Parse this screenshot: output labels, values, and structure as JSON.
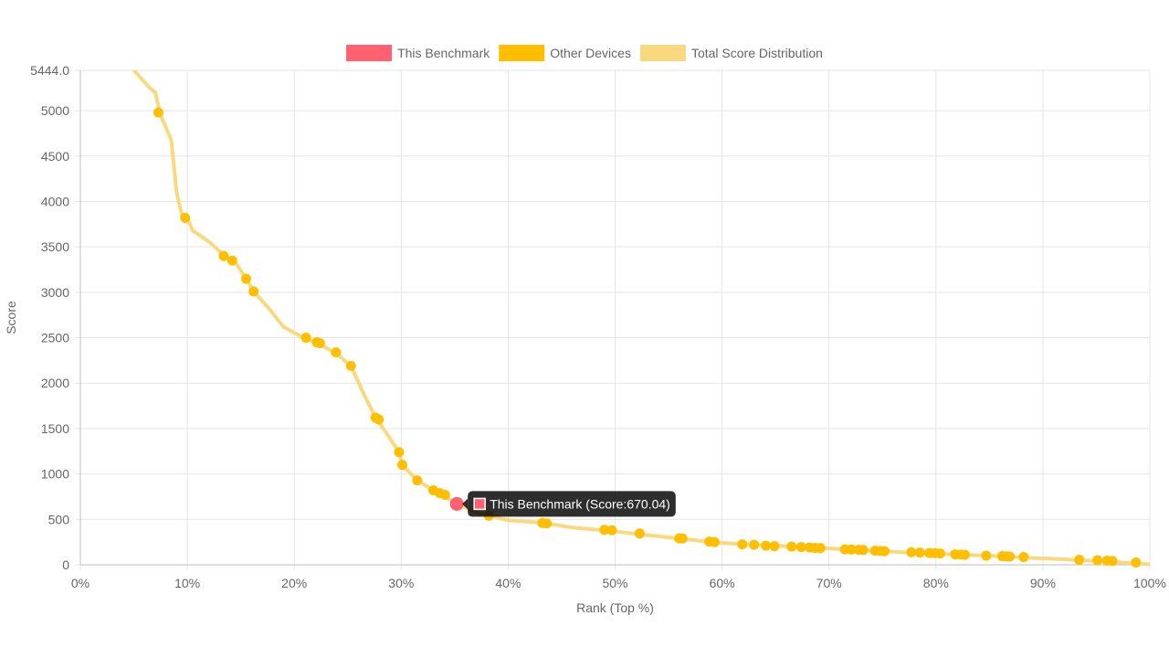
{
  "chart_data": {
    "type": "scatter",
    "xlabel": "Rank (Top %)",
    "ylabel": "Score",
    "xlim": [
      0,
      100
    ],
    "ylim": [
      0,
      5444.0
    ],
    "x_ticks": [
      "0%",
      "10%",
      "20%",
      "30%",
      "40%",
      "50%",
      "60%",
      "70%",
      "80%",
      "90%",
      "100%"
    ],
    "y_ticks": [
      "0",
      "500",
      "1000",
      "1500",
      "2000",
      "2500",
      "3000",
      "3500",
      "4000",
      "4500",
      "5000",
      "5444.0"
    ],
    "grid": true,
    "legend_position": "top",
    "legend": [
      {
        "label": "This Benchmark",
        "color": "#ff6170"
      },
      {
        "label": "Other Devices",
        "color": "#ffbf00"
      },
      {
        "label": "Total Score Distribution",
        "color": "#fad97e"
      }
    ],
    "series": [
      {
        "name": "Total Score Distribution",
        "kind": "line",
        "color": "#fad97e",
        "points": [
          [
            5,
            5444
          ],
          [
            5.5,
            5380
          ],
          [
            6.5,
            5250
          ],
          [
            7,
            5200
          ],
          [
            7.5,
            4950
          ],
          [
            8.5,
            4680
          ],
          [
            9,
            4100
          ],
          [
            9.5,
            3850
          ],
          [
            10,
            3820
          ],
          [
            10.5,
            3680
          ],
          [
            12,
            3560
          ],
          [
            13.5,
            3400
          ],
          [
            14.5,
            3330
          ],
          [
            15.5,
            3150
          ],
          [
            16.2,
            3010
          ],
          [
            17.5,
            2840
          ],
          [
            19,
            2620
          ],
          [
            21,
            2490
          ],
          [
            22.2,
            2440
          ],
          [
            23.9,
            2330
          ],
          [
            25.3,
            2190
          ],
          [
            26.5,
            1880
          ],
          [
            27.6,
            1620
          ],
          [
            28.5,
            1470
          ],
          [
            29.8,
            1240
          ],
          [
            30.1,
            1100
          ],
          [
            31.5,
            930
          ],
          [
            33,
            820
          ],
          [
            34,
            760
          ],
          [
            35.2,
            670
          ],
          [
            37,
            580
          ],
          [
            38.2,
            540
          ],
          [
            40,
            490
          ],
          [
            43.5,
            460
          ],
          [
            46,
            410
          ],
          [
            49,
            380
          ],
          [
            52,
            340
          ],
          [
            56,
            290
          ],
          [
            59,
            250
          ],
          [
            62,
            225
          ],
          [
            65,
            210
          ],
          [
            70,
            180
          ],
          [
            75,
            150
          ],
          [
            80,
            120
          ],
          [
            85,
            100
          ],
          [
            88,
            80
          ],
          [
            92,
            60
          ],
          [
            96,
            35
          ],
          [
            100,
            5
          ]
        ]
      },
      {
        "name": "Other Devices",
        "kind": "scatter",
        "color": "#ffbf00",
        "points": [
          [
            7.3,
            4980
          ],
          [
            9.8,
            3820
          ],
          [
            13.4,
            3400
          ],
          [
            14.2,
            3350
          ],
          [
            15.5,
            3150
          ],
          [
            16.2,
            3010
          ],
          [
            21.1,
            2500
          ],
          [
            22.1,
            2450
          ],
          [
            22.4,
            2440
          ],
          [
            23.9,
            2340
          ],
          [
            25.3,
            2190
          ],
          [
            27.6,
            1620
          ],
          [
            27.9,
            1600
          ],
          [
            29.8,
            1240
          ],
          [
            30.1,
            1100
          ],
          [
            31.5,
            930
          ],
          [
            33.0,
            820
          ],
          [
            33.6,
            790
          ],
          [
            34.1,
            770
          ],
          [
            38.2,
            540
          ],
          [
            43.2,
            460
          ],
          [
            43.6,
            455
          ],
          [
            49.0,
            385
          ],
          [
            49.7,
            380
          ],
          [
            52.3,
            345
          ],
          [
            56.0,
            290
          ],
          [
            56.3,
            290
          ],
          [
            58.8,
            255
          ],
          [
            59.3,
            250
          ],
          [
            61.9,
            225
          ],
          [
            63.0,
            220
          ],
          [
            64.1,
            210
          ],
          [
            64.9,
            205
          ],
          [
            66.5,
            200
          ],
          [
            67.4,
            195
          ],
          [
            68.2,
            190
          ],
          [
            68.7,
            185
          ],
          [
            69.2,
            185
          ],
          [
            71.5,
            170
          ],
          [
            72.1,
            168
          ],
          [
            72.8,
            165
          ],
          [
            73.2,
            163
          ],
          [
            74.3,
            155
          ],
          [
            74.8,
            152
          ],
          [
            75.2,
            150
          ],
          [
            77.7,
            138
          ],
          [
            78.5,
            135
          ],
          [
            79.4,
            130
          ],
          [
            79.9,
            128
          ],
          [
            80.4,
            125
          ],
          [
            81.8,
            115
          ],
          [
            82.3,
            112
          ],
          [
            82.7,
            110
          ],
          [
            84.7,
            100
          ],
          [
            86.2,
            95
          ],
          [
            86.6,
            93
          ],
          [
            86.9,
            91
          ],
          [
            88.2,
            85
          ],
          [
            93.4,
            55
          ],
          [
            95.1,
            50
          ],
          [
            96.0,
            45
          ],
          [
            96.5,
            42
          ],
          [
            98.7,
            25
          ]
        ]
      },
      {
        "name": "This Benchmark",
        "kind": "scatter",
        "color": "#ff6170",
        "points": [
          [
            35.2,
            670.04
          ]
        ]
      }
    ],
    "tooltip": {
      "text": "This Benchmark (Score:670.04)",
      "anchor_series": "This Benchmark"
    }
  }
}
